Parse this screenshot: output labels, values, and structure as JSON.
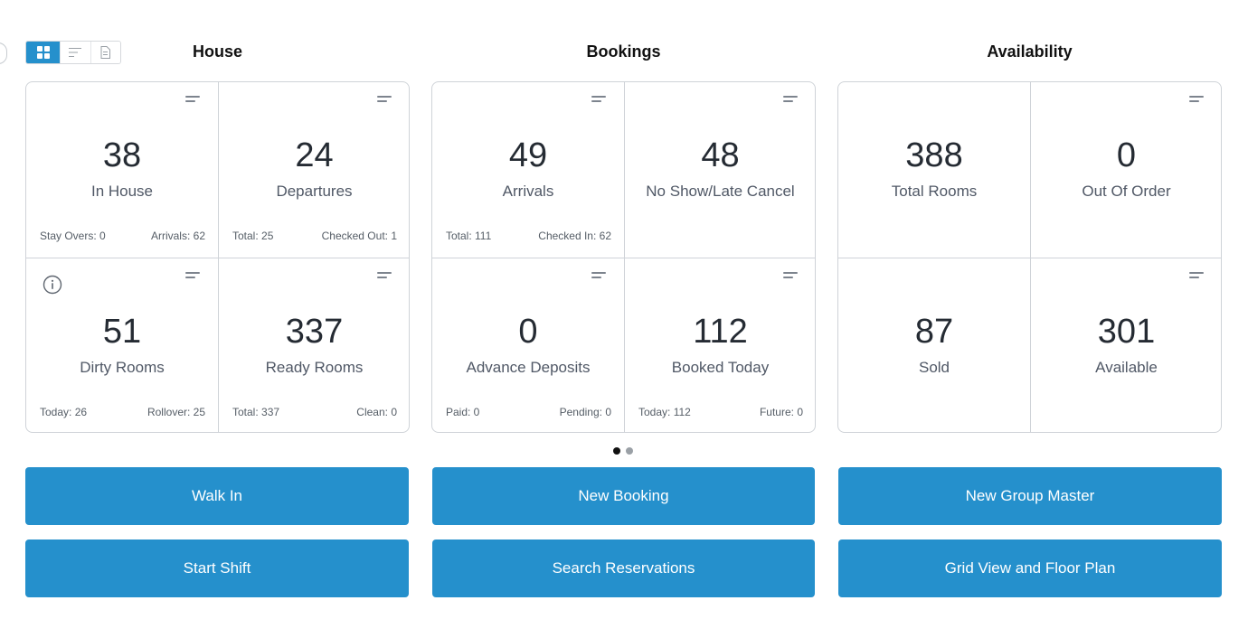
{
  "view_toggle": {
    "options": [
      {
        "icon": "grid-icon",
        "active": true
      },
      {
        "icon": "list-sort-icon",
        "active": false
      },
      {
        "icon": "document-icon",
        "active": false
      }
    ]
  },
  "columns": [
    {
      "title": "House",
      "tiles": [
        {
          "value": "38",
          "label": "In House",
          "footer_left": "Stay Overs: 0",
          "footer_right": "Arrivals: 62",
          "menu_icon": true
        },
        {
          "value": "24",
          "label": "Departures",
          "footer_left": "Total: 25",
          "footer_right": "Checked Out: 1",
          "menu_icon": true
        },
        {
          "value": "51",
          "label": "Dirty Rooms",
          "footer_left": "Today: 26",
          "footer_right": "Rollover: 25",
          "menu_icon": true,
          "info_icon": true
        },
        {
          "value": "337",
          "label": "Ready Rooms",
          "footer_left": "Total: 337",
          "footer_right": "Clean: 0",
          "menu_icon": true
        }
      ]
    },
    {
      "title": "Bookings",
      "tiles": [
        {
          "value": "49",
          "label": "Arrivals",
          "footer_left": "Total: 111",
          "footer_right": "Checked In: 62",
          "menu_icon": true
        },
        {
          "value": "48",
          "label": "No Show/Late Cancel",
          "footer_left": "",
          "footer_right": "",
          "menu_icon": true
        },
        {
          "value": "0",
          "label": "Advance Deposits",
          "footer_left": "Paid: 0",
          "footer_right": "Pending: 0",
          "menu_icon": true
        },
        {
          "value": "112",
          "label": "Booked Today",
          "footer_left": "Today: 112",
          "footer_right": "Future: 0",
          "menu_icon": true
        }
      ]
    },
    {
      "title": "Availability",
      "tiles": [
        {
          "value": "388",
          "label": "Total Rooms",
          "footer_left": "",
          "footer_right": "",
          "menu_icon": false
        },
        {
          "value": "0",
          "label": "Out Of Order",
          "footer_left": "",
          "footer_right": "",
          "menu_icon": true
        },
        {
          "value": "87",
          "label": "Sold",
          "footer_left": "",
          "footer_right": "",
          "menu_icon": false
        },
        {
          "value": "301",
          "label": "Available",
          "footer_left": "",
          "footer_right": "",
          "menu_icon": true
        }
      ]
    }
  ],
  "pagination": {
    "pages": 2,
    "current": 1
  },
  "actions": [
    {
      "label": "Walk In"
    },
    {
      "label": "New Booking"
    },
    {
      "label": "New Group Master"
    },
    {
      "label": "Start Shift"
    },
    {
      "label": "Search Reservations"
    },
    {
      "label": "Grid View and Floor Plan"
    }
  ],
  "colors": {
    "accent": "#2590cc",
    "border": "#cfd3d8",
    "text": "#252b33"
  }
}
